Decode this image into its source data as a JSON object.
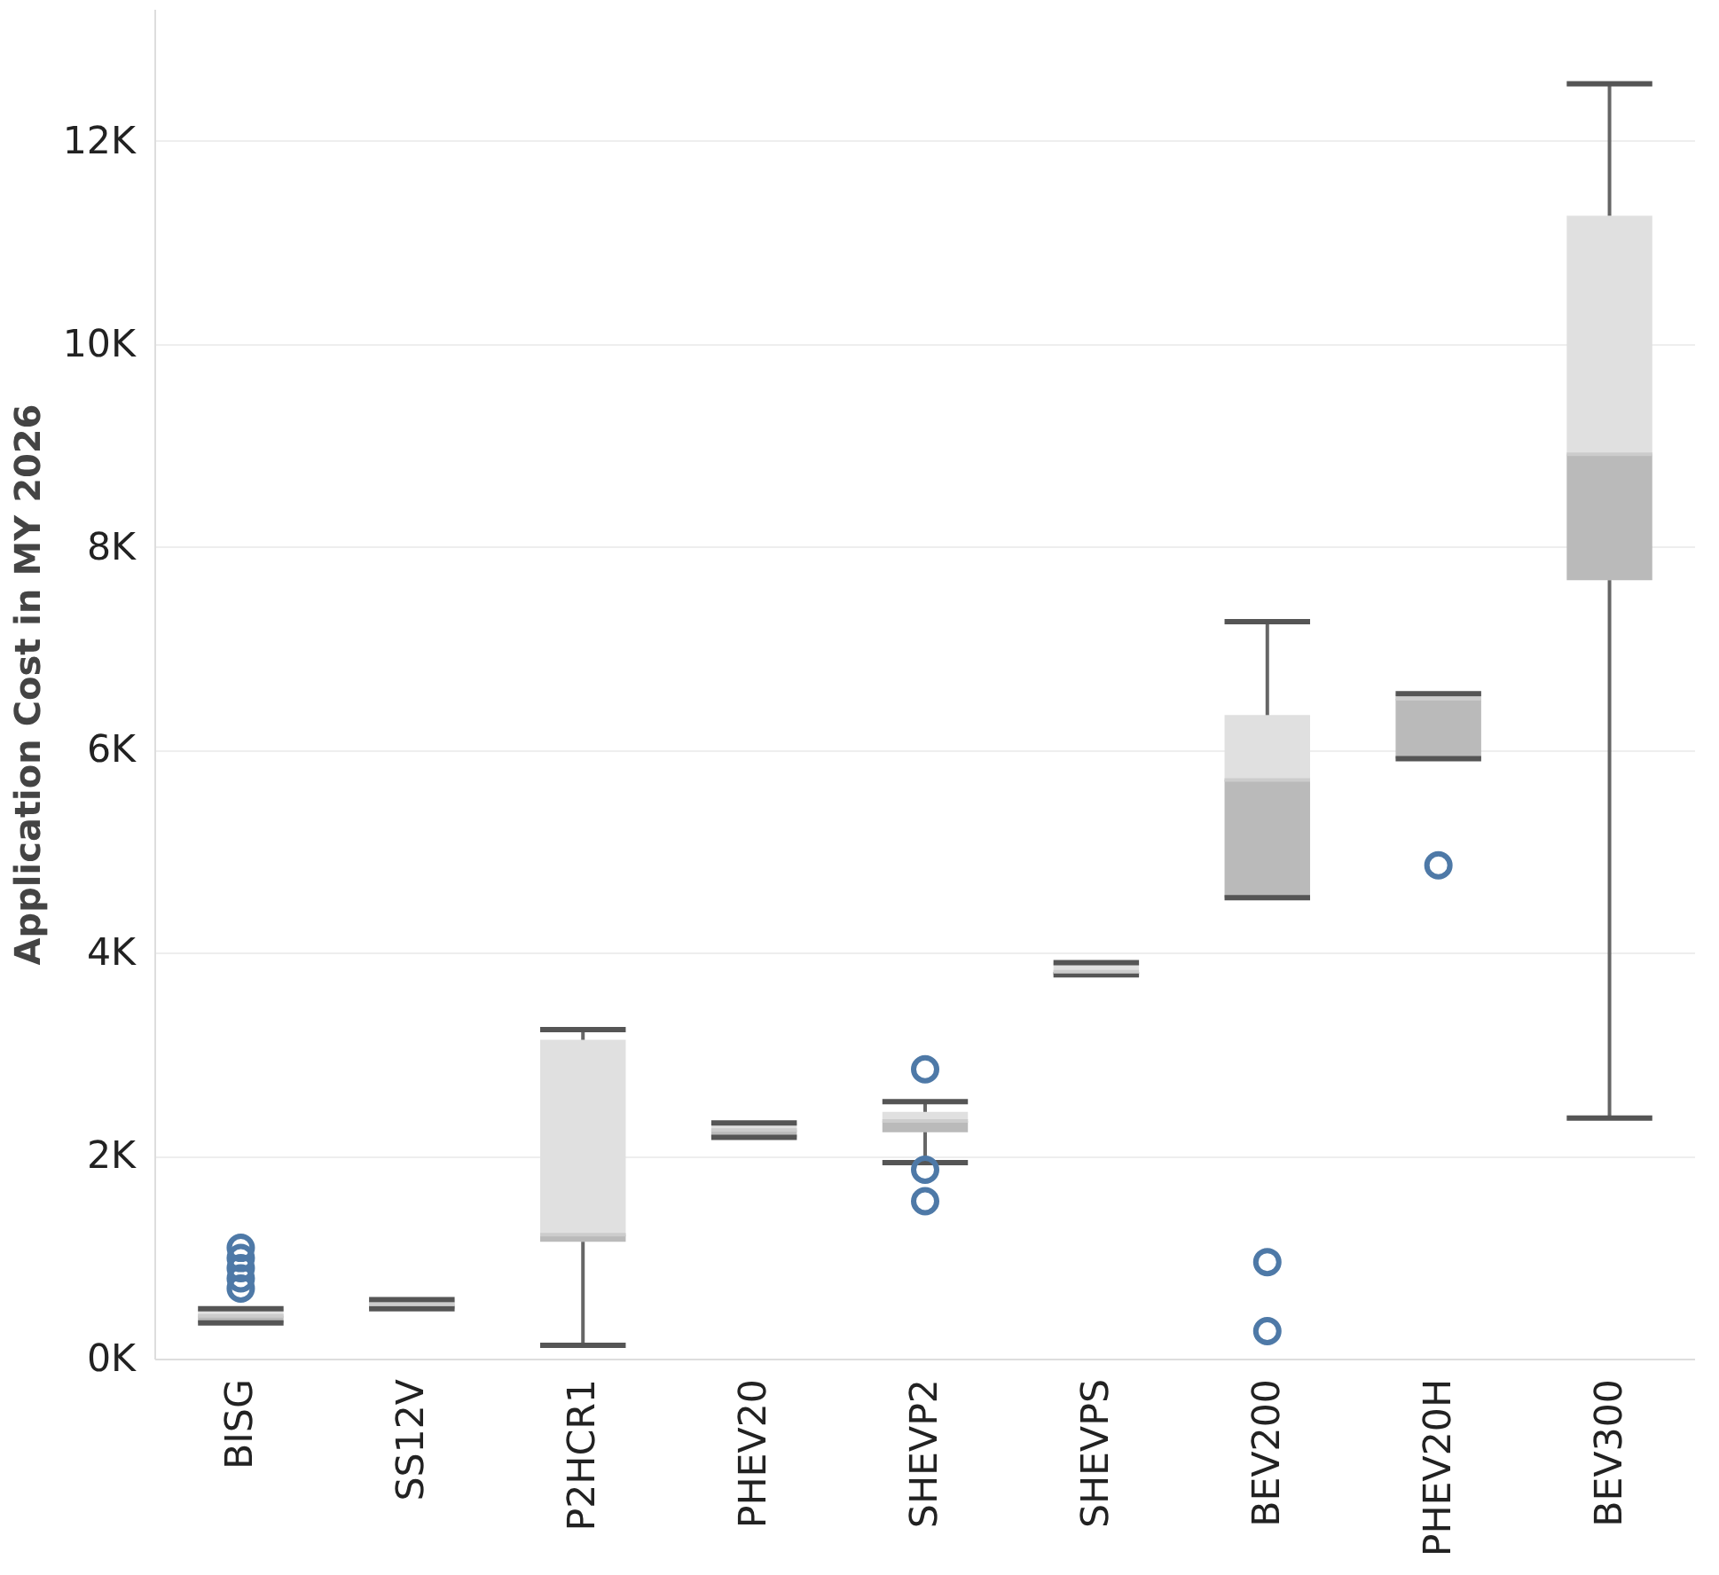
{
  "chart_data": {
    "type": "box",
    "ylabel": "Application Cost in MY 2026",
    "categories": [
      "BISG",
      "SS12V",
      "P2HCR1",
      "PHEV20",
      "SHEVP2",
      "SHEVPS",
      "BEV200",
      "PHEV20H",
      "BEV300"
    ],
    "series": [
      {
        "color": "#bababa",
        "boxes": [
          {
            "low": 360,
            "q1": 360,
            "median": 430,
            "q3": 500,
            "high": 500,
            "outliers": [
              700,
              800,
              900,
              1000,
              1100
            ]
          },
          {
            "low": 500,
            "q1": 500,
            "median": 545,
            "q3": 590,
            "high": 590
          },
          {
            "low": 140,
            "q1": 1160,
            "median": 1230,
            "q3": 3150,
            "high": 3250
          },
          {
            "low": 2190,
            "q1": 2190,
            "median": 2260,
            "q3": 2330,
            "high": 2330
          },
          {
            "low": 1940,
            "q1": 2240,
            "median": 2350,
            "q3": 2440,
            "high": 2540,
            "outliers": [
              2860,
              1870,
              1560
            ]
          },
          {
            "low": 3790,
            "q1": 3790,
            "median": 3820,
            "q3": 3910,
            "high": 3910
          },
          {
            "low": 4550,
            "q1": 4550,
            "median": 5710,
            "q3": 6350,
            "high": 7270,
            "outliers": [
              960,
              280
            ]
          },
          {
            "low": 5920,
            "q1": 5920,
            "median": 6510,
            "q3": 6560,
            "high": 6560,
            "outliers": [
              4870
            ]
          },
          {
            "low": 2380,
            "q1": 7680,
            "median": 8920,
            "q3": 11270,
            "high": 12570
          }
        ]
      }
    ],
    "ylim": [
      0,
      13300
    ],
    "yticks": [
      {
        "value": 0,
        "label": "0K"
      },
      {
        "value": 2000,
        "label": "2K"
      },
      {
        "value": 4000,
        "label": "4K"
      },
      {
        "value": 6000,
        "label": "6K"
      },
      {
        "value": 8000,
        "label": "8K"
      },
      {
        "value": 10000,
        "label": "10K"
      },
      {
        "value": 12000,
        "label": "12K"
      }
    ],
    "grid": "y"
  }
}
